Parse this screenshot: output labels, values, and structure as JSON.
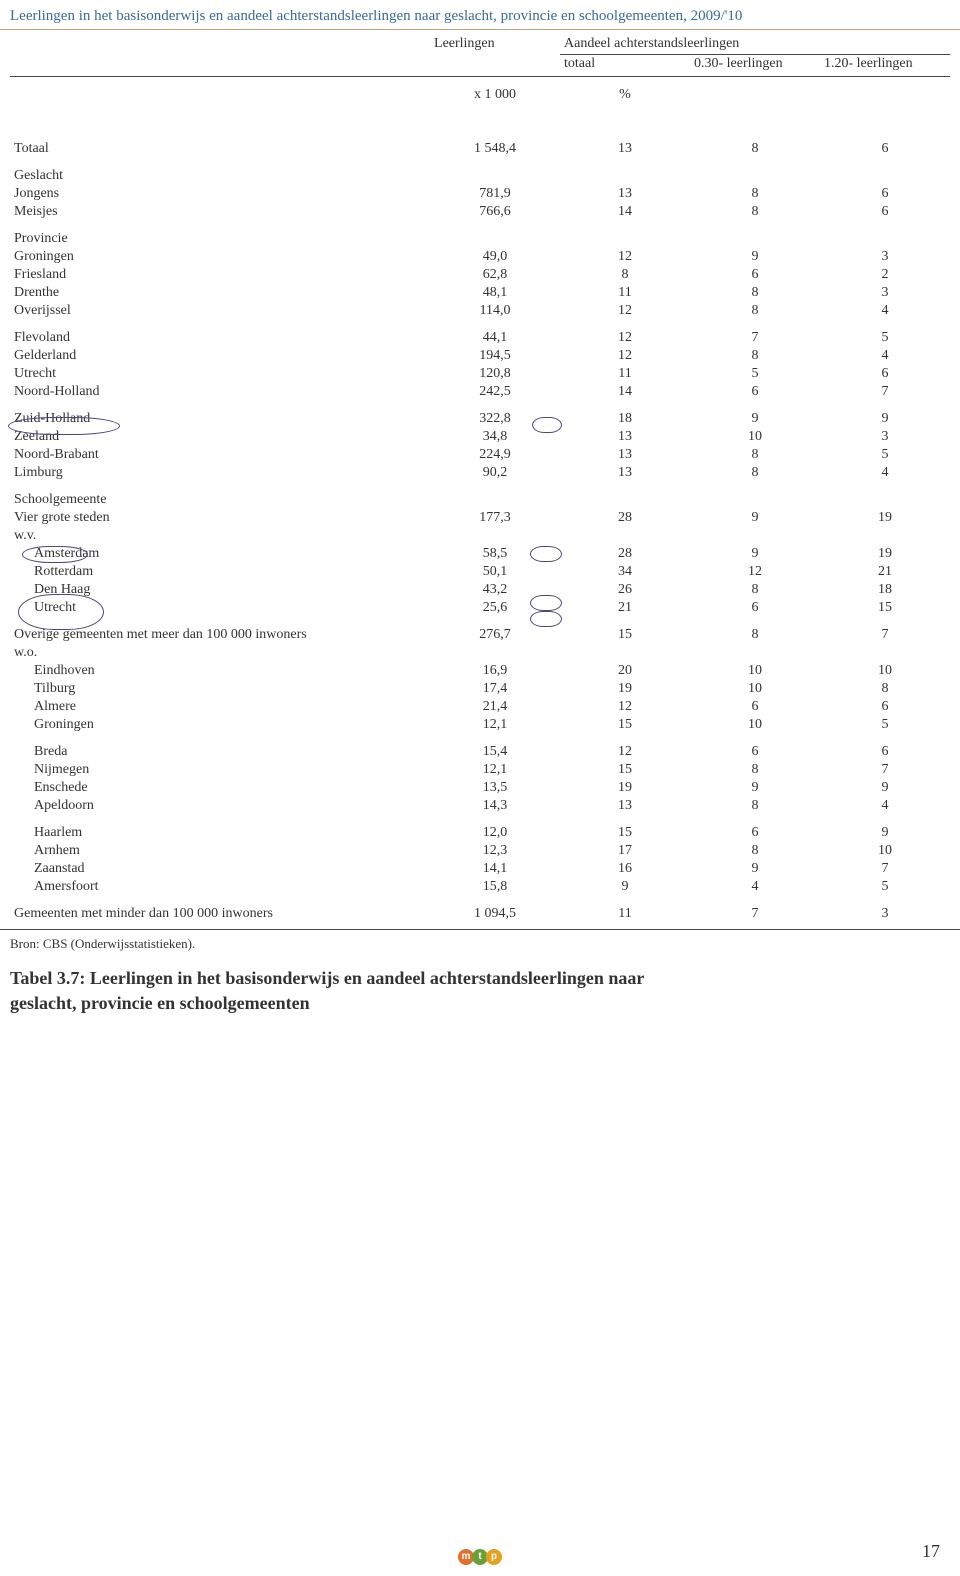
{
  "title": "Leerlingen in het basisonderwijs en aandeel achterstandsleerlingen naar geslacht, provincie en schoolgemeenten, 2009/'10",
  "headers": {
    "c1": "Leerlingen",
    "c2": "Aandeel achterstandsleerlingen",
    "sub_totaal": "totaal",
    "sub_030": "0.30- leerlingen",
    "sub_120": "1.20- leerlingen",
    "unit1": "x 1 000",
    "unit2": "%"
  },
  "rows": {
    "totaal": {
      "l": "Totaal",
      "v": [
        "1 548,4",
        "13",
        "8",
        "6"
      ]
    },
    "geslacht": {
      "l": "Geslacht"
    },
    "jongens": {
      "l": "Jongens",
      "v": [
        "781,9",
        "13",
        "8",
        "6"
      ]
    },
    "meisjes": {
      "l": "Meisjes",
      "v": [
        "766,6",
        "14",
        "8",
        "6"
      ]
    },
    "provincie": {
      "l": "Provincie"
    },
    "groningen": {
      "l": "Groningen",
      "v": [
        "49,0",
        "12",
        "9",
        "3"
      ]
    },
    "friesland": {
      "l": "Friesland",
      "v": [
        "62,8",
        "8",
        "6",
        "2"
      ]
    },
    "drenthe": {
      "l": "Drenthe",
      "v": [
        "48,1",
        "11",
        "8",
        "3"
      ]
    },
    "overijssel": {
      "l": "Overijssel",
      "v": [
        "114,0",
        "12",
        "8",
        "4"
      ]
    },
    "flevoland": {
      "l": "Flevoland",
      "v": [
        "44,1",
        "12",
        "7",
        "5"
      ]
    },
    "gelderland": {
      "l": "Gelderland",
      "v": [
        "194,5",
        "12",
        "8",
        "4"
      ]
    },
    "utrecht_p": {
      "l": "Utrecht",
      "v": [
        "120,8",
        "11",
        "5",
        "6"
      ]
    },
    "noordholland": {
      "l": "Noord-Holland",
      "v": [
        "242,5",
        "14",
        "6",
        "7"
      ]
    },
    "zuidholland": {
      "l": "Zuid-Holland",
      "v": [
        "322,8",
        "18",
        "9",
        "9"
      ]
    },
    "zeeland": {
      "l": "Zeeland",
      "v": [
        "34,8",
        "13",
        "10",
        "3"
      ]
    },
    "noordbrabant": {
      "l": "Noord-Brabant",
      "v": [
        "224,9",
        "13",
        "8",
        "5"
      ]
    },
    "limburg": {
      "l": "Limburg",
      "v": [
        "90,2",
        "13",
        "8",
        "4"
      ]
    },
    "schoolgemeente": {
      "l": "Schoolgemeente"
    },
    "viergrote": {
      "l": "Vier grote steden",
      "v": [
        "177,3",
        "28",
        "9",
        "19"
      ]
    },
    "wv1": {
      "l": "w.v."
    },
    "amsterdam": {
      "l": "Amsterdam",
      "v": [
        "58,5",
        "28",
        "9",
        "19"
      ]
    },
    "rotterdam": {
      "l": "Rotterdam",
      "v": [
        "50,1",
        "34",
        "12",
        "21"
      ]
    },
    "denhaag": {
      "l": "Den Haag",
      "v": [
        "43,2",
        "26",
        "8",
        "18"
      ]
    },
    "utrecht_c": {
      "l": "Utrecht",
      "v": [
        "25,6",
        "21",
        "6",
        "15"
      ]
    },
    "overige": {
      "l": "Overige gemeenten met meer dan 100 000 inwoners",
      "v": [
        "276,7",
        "15",
        "8",
        "7"
      ]
    },
    "wo1": {
      "l": "w.o."
    },
    "eindhoven": {
      "l": "Eindhoven",
      "v": [
        "16,9",
        "20",
        "10",
        "10"
      ]
    },
    "tilburg": {
      "l": "Tilburg",
      "v": [
        "17,4",
        "19",
        "10",
        "8"
      ]
    },
    "almere": {
      "l": "Almere",
      "v": [
        "21,4",
        "12",
        "6",
        "6"
      ]
    },
    "groningen_c": {
      "l": "Groningen",
      "v": [
        "12,1",
        "15",
        "10",
        "5"
      ]
    },
    "breda": {
      "l": "Breda",
      "v": [
        "15,4",
        "12",
        "6",
        "6"
      ]
    },
    "nijmegen": {
      "l": "Nijmegen",
      "v": [
        "12,1",
        "15",
        "8",
        "7"
      ]
    },
    "enschede": {
      "l": "Enschede",
      "v": [
        "13,5",
        "19",
        "9",
        "9"
      ]
    },
    "apeldoorn": {
      "l": "Apeldoorn",
      "v": [
        "14,3",
        "13",
        "8",
        "4"
      ]
    },
    "haarlem": {
      "l": "Haarlem",
      "v": [
        "12,0",
        "15",
        "6",
        "9"
      ]
    },
    "arnhem": {
      "l": "Arnhem",
      "v": [
        "12,3",
        "17",
        "8",
        "10"
      ]
    },
    "zaanstad": {
      "l": "Zaanstad",
      "v": [
        "14,1",
        "16",
        "9",
        "7"
      ]
    },
    "amersfoort": {
      "l": "Amersfoort",
      "v": [
        "15,8",
        "9",
        "4",
        "5"
      ]
    },
    "minder": {
      "l": "Gemeenten met  minder dan 100 000 inwoners",
      "v": [
        "1 094,5",
        "11",
        "7",
        "3"
      ]
    }
  },
  "source": "Bron: CBS (Onderwijsstatistieken).",
  "caption_bold": "Tabel 3.7: Leerlingen in het basisonderwijs en aandeel achterstandsleerlingen naar",
  "caption_rest": "geslacht, provincie en schoolgemeenten",
  "page_number": "17",
  "logo": {
    "m": "m",
    "t": "t",
    "p": "p",
    "c1": "#e07030",
    "c2": "#6aa038",
    "c3": "#e8a020"
  }
}
